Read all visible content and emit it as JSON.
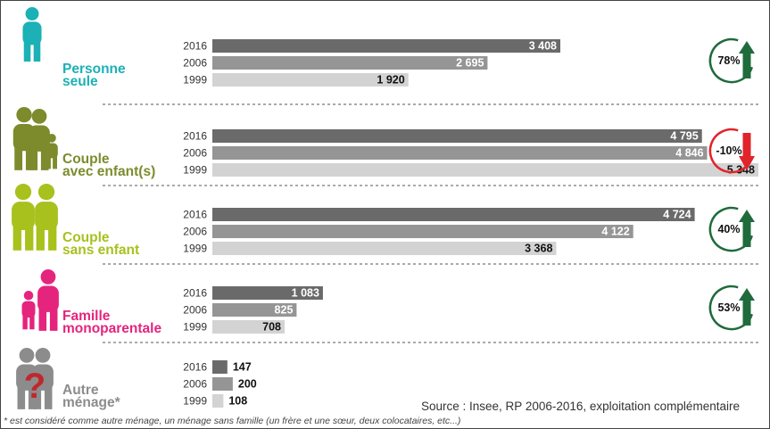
{
  "colors": {
    "bar_2016": "#6a6a6a",
    "bar_2006": "#959595",
    "bar_1999": "#d3d3d3",
    "up_arrow": "#1f6b3c",
    "down_arrow": "#e1242a"
  },
  "chart_data": {
    "type": "bar",
    "orientation": "horizontal",
    "years": [
      "2016",
      "2006",
      "1999"
    ],
    "xlim": [
      0,
      5348
    ],
    "groups": [
      {
        "label_line1": "Personne",
        "label_line2": "seule",
        "color": "#1bb1b6",
        "icon": "single-person-icon",
        "values": [
          3408,
          2695,
          1920
        ],
        "value_labels": [
          "3 408",
          "2 695",
          "1 920"
        ],
        "change": "78%",
        "trend": "up"
      },
      {
        "label_line1": "Couple",
        "label_line2": "avec enfant(s)",
        "color": "#7d8b2c",
        "icon": "family-with-children-icon",
        "values": [
          4795,
          4846,
          5348
        ],
        "value_labels": [
          "4 795",
          "4 846",
          "5 348"
        ],
        "change": "-10%",
        "trend": "down"
      },
      {
        "label_line1": "Couple",
        "label_line2": "sans enfant",
        "color": "#a8c11d",
        "icon": "couple-icon",
        "values": [
          4724,
          4122,
          3368
        ],
        "value_labels": [
          "4 724",
          "4 122",
          "3 368"
        ],
        "change": "40%",
        "trend": "up"
      },
      {
        "label_line1": "Famille",
        "label_line2": "monoparentale",
        "color": "#e5247e",
        "icon": "single-parent-icon",
        "values": [
          1083,
          825,
          708
        ],
        "value_labels": [
          "1 083",
          "825",
          "708"
        ],
        "change": "53%",
        "trend": "up"
      },
      {
        "label_line1": "Autre",
        "label_line2": "ménage*",
        "color": "#8c8c8c",
        "icon": "question-mark-couple-icon",
        "values": [
          147,
          200,
          108
        ],
        "value_labels": [
          "147",
          "200",
          "108"
        ],
        "change": "",
        "trend": ""
      }
    ]
  },
  "source": "Source : Insee, RP 2006-2016, exploitation complémentaire",
  "footnote": "* est considéré comme autre ménage, un ménage sans famille (un frère et une sœur, deux colocataires, etc...)"
}
